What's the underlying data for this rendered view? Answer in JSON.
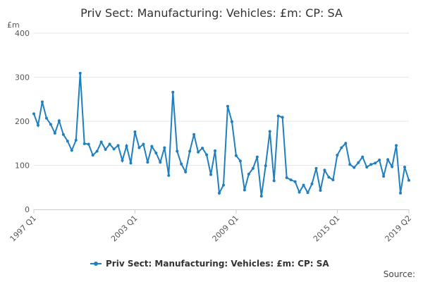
{
  "chart_data": {
    "type": "line",
    "title": "Priv Sect: Manufacturing: Vehicles: £m: CP: SA",
    "unit_label": "£m",
    "ylim": [
      0,
      400
    ],
    "yticks": [
      "0",
      "100",
      "200",
      "300",
      "400"
    ],
    "xticks": [
      {
        "index": 0,
        "label": "1997 Q1"
      },
      {
        "index": 24,
        "label": "2003 Q1"
      },
      {
        "index": 48,
        "label": "2009 Q1"
      },
      {
        "index": 72,
        "label": "2015 Q1"
      },
      {
        "index": 89,
        "label": "2019 Q2"
      }
    ],
    "grid": true,
    "legend_position": "bottom",
    "series": [
      {
        "name": "Priv Sect: Manufacturing: Vehicles: £m: CP: SA",
        "color": "#1f7fbf",
        "values": [
          217,
          191,
          244,
          207,
          193,
          173,
          201,
          170,
          155,
          134,
          157,
          309,
          149,
          148,
          123,
          132,
          153,
          136,
          148,
          137,
          145,
          111,
          144,
          105,
          176,
          140,
          148,
          107,
          143,
          128,
          107,
          140,
          77,
          266,
          132,
          103,
          85,
          132,
          170,
          130,
          139,
          124,
          79,
          133,
          37,
          55,
          234,
          199,
          122,
          110,
          44,
          80,
          93,
          119,
          30,
          99,
          177,
          65,
          212,
          209,
          72,
          67,
          63,
          39,
          55,
          38,
          58,
          93,
          43,
          89,
          73,
          67,
          123,
          140,
          150,
          102,
          95,
          106,
          119,
          96,
          102,
          105,
          112,
          75,
          113,
          97,
          145,
          37,
          96,
          66
        ]
      }
    ]
  },
  "source_label": "Source:"
}
